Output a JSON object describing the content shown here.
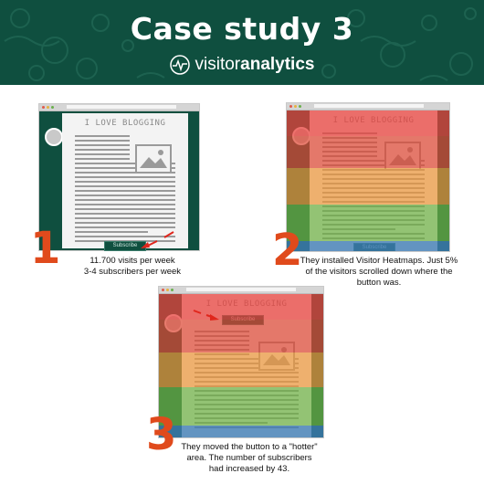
{
  "header": {
    "title": "Case study 3",
    "brand_part1": "visitor",
    "brand_part2": "analytics"
  },
  "colors": {
    "brand_green": "#0f4f3f",
    "accent_orange": "#e04a1c",
    "heat_red": "#e85a4f",
    "heat_orange": "#eda046",
    "heat_green": "#76b24a",
    "heat_blue": "#3f7fb4"
  },
  "blog_title": "I LOVE BLOGGING",
  "subscribe_label": "Subscribe",
  "steps": [
    {
      "number": "1",
      "lines": [
        "11.700 visits per week",
        "3-4 subscribers per week"
      ]
    },
    {
      "number": "2",
      "lines": [
        "They installed Visitor Heatmaps. Just 5%",
        "of the visitors scrolled down where the",
        "button was."
      ]
    },
    {
      "number": "3",
      "lines": [
        "They moved the button to a \"hotter\"",
        "area. The number of subscribers",
        "had increased by 43."
      ]
    }
  ]
}
